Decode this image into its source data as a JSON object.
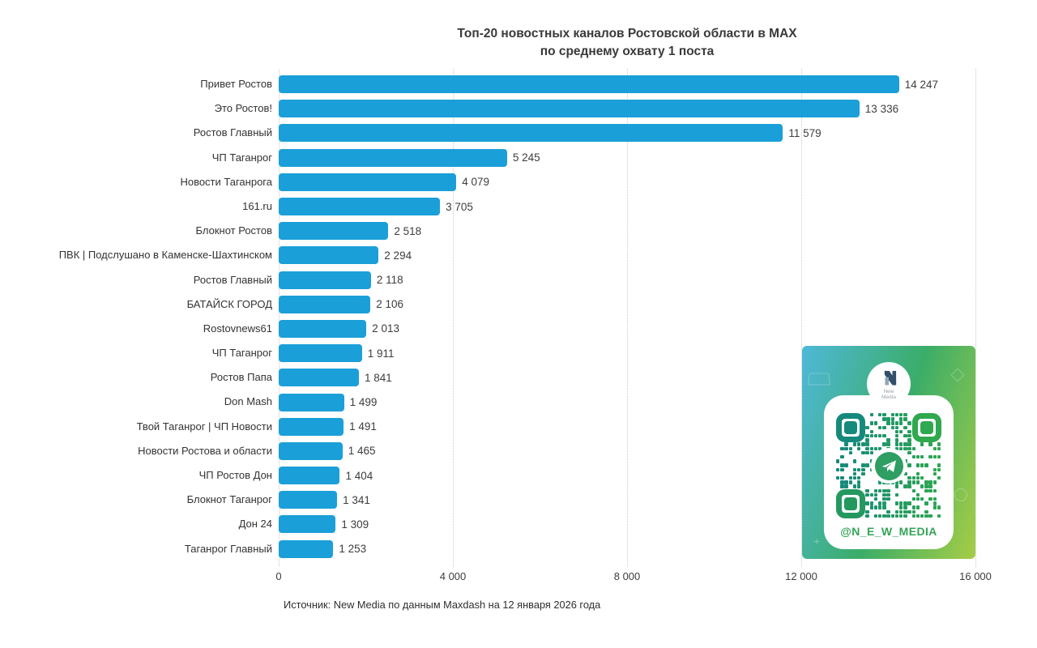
{
  "title": {
    "line1": "Топ-20 новостных каналов Ростовской области в MAX",
    "line2": "по среднему охвату 1 поста"
  },
  "source": "Источник: New Media по данным Maxdash на 12 января 2026 года",
  "x_axis": {
    "tick_labels": [
      "0",
      "4 000",
      "8 000",
      "12 000",
      "16 000"
    ]
  },
  "qr_card": {
    "handle": "@N_E_W_MEDIA",
    "logo_top": "New",
    "logo_bottom": "Media"
  },
  "colors": {
    "bar": "#1B9FD8",
    "title_text": "#3a3a3a",
    "qr_teal": "#15897C",
    "qr_green": "#2FA84F",
    "card_gradient_start": "#4FB8D9",
    "card_gradient_mid": "#3BAD68",
    "card_gradient_end": "#A6CD46"
  },
  "chart_data": {
    "type": "bar",
    "orientation": "horizontal",
    "title": "Топ-20 новостных каналов Ростовской области в MAX по среднему охвату 1 поста",
    "categories": [
      "Привет Ростов",
      "Это Ростов!",
      "Ростов Главный",
      "ЧП Таганрог",
      "Новости Таганрога",
      "161.ru",
      "Блокнот Ростов",
      "ПВК | Подслушано в Каменске-Шахтинском",
      "Ростов Главный",
      "БАТАЙСК ГОРОД",
      "Rostovnews61",
      "ЧП Таганрог",
      "Ростов Папа",
      "Don Mash",
      "Твой Таганрог | ЧП Новости",
      "Новости Ростова и области",
      "ЧП Ростов Дон",
      "Блокнот Таганрог",
      "Дон 24",
      "Таганрог Главный"
    ],
    "values": [
      14247,
      13336,
      11579,
      5245,
      4079,
      3705,
      2518,
      2294,
      2118,
      2106,
      2013,
      1911,
      1841,
      1499,
      1491,
      1465,
      1404,
      1341,
      1309,
      1253
    ],
    "value_labels": [
      "14 247",
      "13 336",
      "11 579",
      "5 245",
      "4 079",
      "3 705",
      "2 518",
      "2 294",
      "2 118",
      "2 106",
      "2 013",
      "1 911",
      "1 841",
      "1 499",
      "1 491",
      "1 465",
      "1 404",
      "1 341",
      "1 309",
      "1 253"
    ],
    "xlabel": "",
    "ylabel": "",
    "xlim": [
      0,
      16000
    ],
    "xticks": [
      0,
      4000,
      8000,
      12000,
      16000
    ],
    "grid": "vertical-dotted",
    "legend": "none",
    "bar_color": "#1B9FD8"
  }
}
